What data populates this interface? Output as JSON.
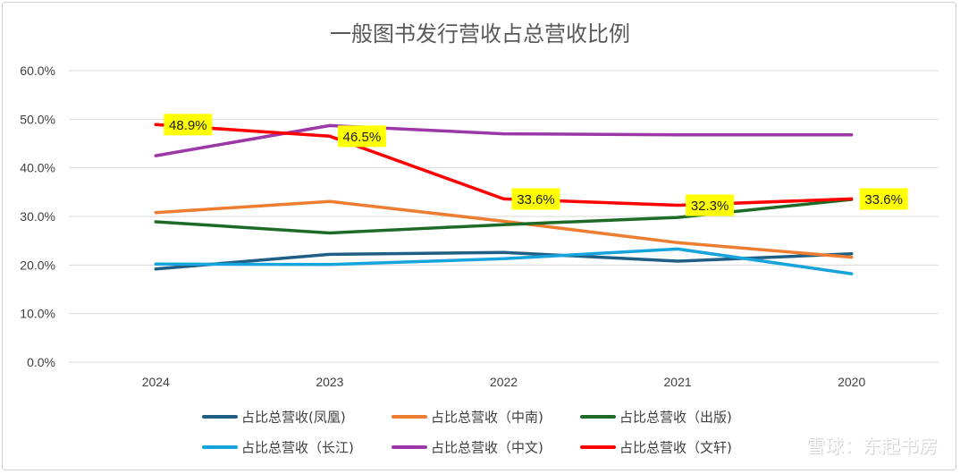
{
  "chart_data": {
    "type": "line",
    "title": "一般图书发行营收占总营收比例",
    "categories": [
      "2024",
      "2023",
      "2022",
      "2021",
      "2020"
    ],
    "y_ticks": [
      "0.0%",
      "10.0%",
      "20.0%",
      "30.0%",
      "40.0%",
      "50.0%",
      "60.0%"
    ],
    "ylim": [
      0,
      60
    ],
    "grid": true,
    "legend_position": "bottom",
    "series": [
      {
        "name": "占比总营收(凤凰)",
        "color": "#1f5f85",
        "values": [
          19.2,
          22.2,
          22.6,
          20.8,
          22.3
        ]
      },
      {
        "name": "占比总营收（中南)",
        "color": "#ed7d31",
        "values": [
          30.8,
          33.1,
          29.0,
          24.6,
          21.6
        ]
      },
      {
        "name": "占比总营收（出版)",
        "color": "#1e6b27",
        "values": [
          28.9,
          26.6,
          28.3,
          29.8,
          33.5
        ]
      },
      {
        "name": "占比总营收（长江)",
        "color": "#17a3dc",
        "values": [
          20.2,
          20.1,
          21.3,
          23.3,
          18.2
        ]
      },
      {
        "name": "占比总营收（中文)",
        "color": "#9b37a6",
        "values": [
          42.5,
          48.7,
          47.0,
          46.8,
          46.8
        ]
      },
      {
        "name": "占比总营收（文轩)",
        "color": "#ff0000",
        "values": [
          48.9,
          46.5,
          33.6,
          32.3,
          33.6
        ]
      }
    ],
    "data_labels": [
      {
        "series": "占比总营收（文轩)",
        "category": "2024",
        "text": "48.9%"
      },
      {
        "series": "占比总营收（文轩)",
        "category": "2023",
        "text": "46.5%"
      },
      {
        "series": "占比总营收（文轩)",
        "category": "2022",
        "text": "33.6%"
      },
      {
        "series": "占比总营收（文轩)",
        "category": "2021",
        "text": "32.3%"
      },
      {
        "series": "占比总营收（文轩)",
        "category": "2020",
        "text": "33.6%"
      }
    ],
    "data_label_bg": "#ffff00"
  },
  "watermark": "雪球：东起书房"
}
